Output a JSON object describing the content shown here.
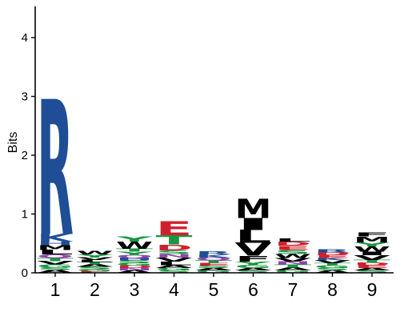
{
  "chart_data": {
    "type": "sequence-logo",
    "title": "",
    "xlabel": "",
    "ylabel": "Bits",
    "ylim": [
      0,
      4.5
    ],
    "yticks": [
      0,
      1,
      2,
      3,
      4
    ],
    "positions": [
      "1",
      "2",
      "3",
      "4",
      "5",
      "6",
      "7",
      "8",
      "9"
    ],
    "colors": {
      "hydrophobic": "#000000",
      "basic": "#1f4e96",
      "acidic": "#d0202e",
      "polar": "#1a9641",
      "neutral": "#8e44ad"
    },
    "stacks": [
      {
        "position": "1",
        "letters": [
          {
            "letter": "A",
            "bits": 0.05,
            "color": "#000000"
          },
          {
            "letter": "S",
            "bits": 0.04,
            "color": "#1a9641"
          },
          {
            "letter": "G",
            "bits": 0.05,
            "color": "#1a9641"
          },
          {
            "letter": "V",
            "bits": 0.06,
            "color": "#000000"
          },
          {
            "letter": "T",
            "bits": 0.05,
            "color": "#1a9641"
          },
          {
            "letter": "Q",
            "bits": 0.06,
            "color": "#8e44ad"
          },
          {
            "letter": "L",
            "bits": 0.08,
            "color": "#000000"
          },
          {
            "letter": "M",
            "bits": 0.08,
            "color": "#000000"
          },
          {
            "letter": "H",
            "bits": 0.06,
            "color": "#1f4e96"
          },
          {
            "letter": "K",
            "bits": 0.13,
            "color": "#1f4e96"
          },
          {
            "letter": "R",
            "bits": 2.3,
            "color": "#1f4e96"
          }
        ]
      },
      {
        "position": "2",
        "letters": [
          {
            "letter": "E",
            "bits": 0.03,
            "color": "#d0202e"
          },
          {
            "letter": "G",
            "bits": 0.03,
            "color": "#1a9641"
          },
          {
            "letter": "S",
            "bits": 0.04,
            "color": "#1a9641"
          },
          {
            "letter": "A",
            "bits": 0.04,
            "color": "#000000"
          },
          {
            "letter": "T",
            "bits": 0.04,
            "color": "#1a9641"
          },
          {
            "letter": "L",
            "bits": 0.04,
            "color": "#000000"
          },
          {
            "letter": "V",
            "bits": 0.04,
            "color": "#000000"
          },
          {
            "letter": "Y",
            "bits": 0.05,
            "color": "#1a9641"
          },
          {
            "letter": "W",
            "bits": 0.06,
            "color": "#000000"
          }
        ]
      },
      {
        "position": "3",
        "letters": [
          {
            "letter": "A",
            "bits": 0.04,
            "color": "#000000"
          },
          {
            "letter": "N",
            "bits": 0.04,
            "color": "#8e44ad"
          },
          {
            "letter": "D",
            "bits": 0.04,
            "color": "#d0202e"
          },
          {
            "letter": "G",
            "bits": 0.04,
            "color": "#1a9641"
          },
          {
            "letter": "S",
            "bits": 0.05,
            "color": "#1a9641"
          },
          {
            "letter": "H",
            "bits": 0.04,
            "color": "#1f4e96"
          },
          {
            "letter": "Q",
            "bits": 0.05,
            "color": "#8e44ad"
          },
          {
            "letter": "Y",
            "bits": 0.06,
            "color": "#1a9641"
          },
          {
            "letter": "T",
            "bits": 0.05,
            "color": "#1a9641"
          },
          {
            "letter": "W",
            "bits": 0.12,
            "color": "#000000"
          },
          {
            "letter": "Y",
            "bits": 0.09,
            "color": "#1a9641"
          }
        ]
      },
      {
        "position": "4",
        "letters": [
          {
            "letter": "S",
            "bits": 0.04,
            "color": "#1a9641"
          },
          {
            "letter": "G",
            "bits": 0.04,
            "color": "#1a9641"
          },
          {
            "letter": "A",
            "bits": 0.05,
            "color": "#000000"
          },
          {
            "letter": "L",
            "bits": 0.06,
            "color": "#000000"
          },
          {
            "letter": "V",
            "bits": 0.07,
            "color": "#000000"
          },
          {
            "letter": "N",
            "bits": 0.06,
            "color": "#8e44ad"
          },
          {
            "letter": "S",
            "bits": 0.06,
            "color": "#1a9641"
          },
          {
            "letter": "D",
            "bits": 0.1,
            "color": "#d0202e"
          },
          {
            "letter": "T",
            "bits": 0.16,
            "color": "#1a9641"
          },
          {
            "letter": "E",
            "bits": 0.24,
            "color": "#d0202e"
          }
        ]
      },
      {
        "position": "5",
        "letters": [
          {
            "letter": "G",
            "bits": 0.04,
            "color": "#1a9641"
          },
          {
            "letter": "A",
            "bits": 0.04,
            "color": "#000000"
          },
          {
            "letter": "S",
            "bits": 0.04,
            "color": "#1a9641"
          },
          {
            "letter": "E",
            "bits": 0.04,
            "color": "#d0202e"
          },
          {
            "letter": "T",
            "bits": 0.05,
            "color": "#1a9641"
          },
          {
            "letter": "Q",
            "bits": 0.05,
            "color": "#8e44ad"
          },
          {
            "letter": "K",
            "bits": 0.05,
            "color": "#1f4e96"
          },
          {
            "letter": "R",
            "bits": 0.05,
            "color": "#1f4e96"
          }
        ]
      },
      {
        "position": "6",
        "letters": [
          {
            "letter": "S",
            "bits": 0.04,
            "color": "#1a9641"
          },
          {
            "letter": "A",
            "bits": 0.04,
            "color": "#000000"
          },
          {
            "letter": "G",
            "bits": 0.05,
            "color": "#1a9641"
          },
          {
            "letter": "Y",
            "bits": 0.06,
            "color": "#1a9641"
          },
          {
            "letter": "F",
            "bits": 0.1,
            "color": "#000000"
          },
          {
            "letter": "V",
            "bits": 0.22,
            "color": "#000000"
          },
          {
            "letter": "L",
            "bits": 0.22,
            "color": "#000000"
          },
          {
            "letter": "I",
            "bits": 0.2,
            "color": "#000000"
          },
          {
            "letter": "M",
            "bits": 0.33,
            "color": "#000000"
          }
        ]
      },
      {
        "position": "7",
        "letters": [
          {
            "letter": "G",
            "bits": 0.04,
            "color": "#1a9641"
          },
          {
            "letter": "A",
            "bits": 0.05,
            "color": "#000000"
          },
          {
            "letter": "T",
            "bits": 0.05,
            "color": "#1a9641"
          },
          {
            "letter": "N",
            "bits": 0.05,
            "color": "#8e44ad"
          },
          {
            "letter": "V",
            "bits": 0.06,
            "color": "#000000"
          },
          {
            "letter": "W",
            "bits": 0.07,
            "color": "#000000"
          },
          {
            "letter": "S",
            "bits": 0.07,
            "color": "#1a9641"
          },
          {
            "letter": "E",
            "bits": 0.07,
            "color": "#d0202e"
          },
          {
            "letter": "D",
            "bits": 0.07,
            "color": "#d0202e"
          },
          {
            "letter": "L",
            "bits": 0.05,
            "color": "#000000"
          }
        ]
      },
      {
        "position": "8",
        "letters": [
          {
            "letter": "A",
            "bits": 0.04,
            "color": "#000000"
          },
          {
            "letter": "S",
            "bits": 0.04,
            "color": "#1a9641"
          },
          {
            "letter": "G",
            "bits": 0.04,
            "color": "#1a9641"
          },
          {
            "letter": "T",
            "bits": 0.04,
            "color": "#1a9641"
          },
          {
            "letter": "V",
            "bits": 0.05,
            "color": "#000000"
          },
          {
            "letter": "K",
            "bits": 0.04,
            "color": "#1f4e96"
          },
          {
            "letter": "E",
            "bits": 0.05,
            "color": "#d0202e"
          },
          {
            "letter": "D",
            "bits": 0.05,
            "color": "#d0202e"
          },
          {
            "letter": "R",
            "bits": 0.05,
            "color": "#1f4e96"
          }
        ]
      },
      {
        "position": "9",
        "letters": [
          {
            "letter": "S",
            "bits": 0.04,
            "color": "#1a9641"
          },
          {
            "letter": "A",
            "bits": 0.04,
            "color": "#000000"
          },
          {
            "letter": "E",
            "bits": 0.05,
            "color": "#d0202e"
          },
          {
            "letter": "D",
            "bits": 0.04,
            "color": "#d0202e"
          },
          {
            "letter": "T",
            "bits": 0.05,
            "color": "#1a9641"
          },
          {
            "letter": "V",
            "bits": 0.08,
            "color": "#000000"
          },
          {
            "letter": "I",
            "bits": 0.06,
            "color": "#000000"
          },
          {
            "letter": "W",
            "bits": 0.09,
            "color": "#000000"
          },
          {
            "letter": "Y",
            "bits": 0.07,
            "color": "#1a9641"
          },
          {
            "letter": "M",
            "bits": 0.1,
            "color": "#000000"
          },
          {
            "letter": "F",
            "bits": 0.07,
            "color": "#000000"
          }
        ]
      }
    ]
  }
}
